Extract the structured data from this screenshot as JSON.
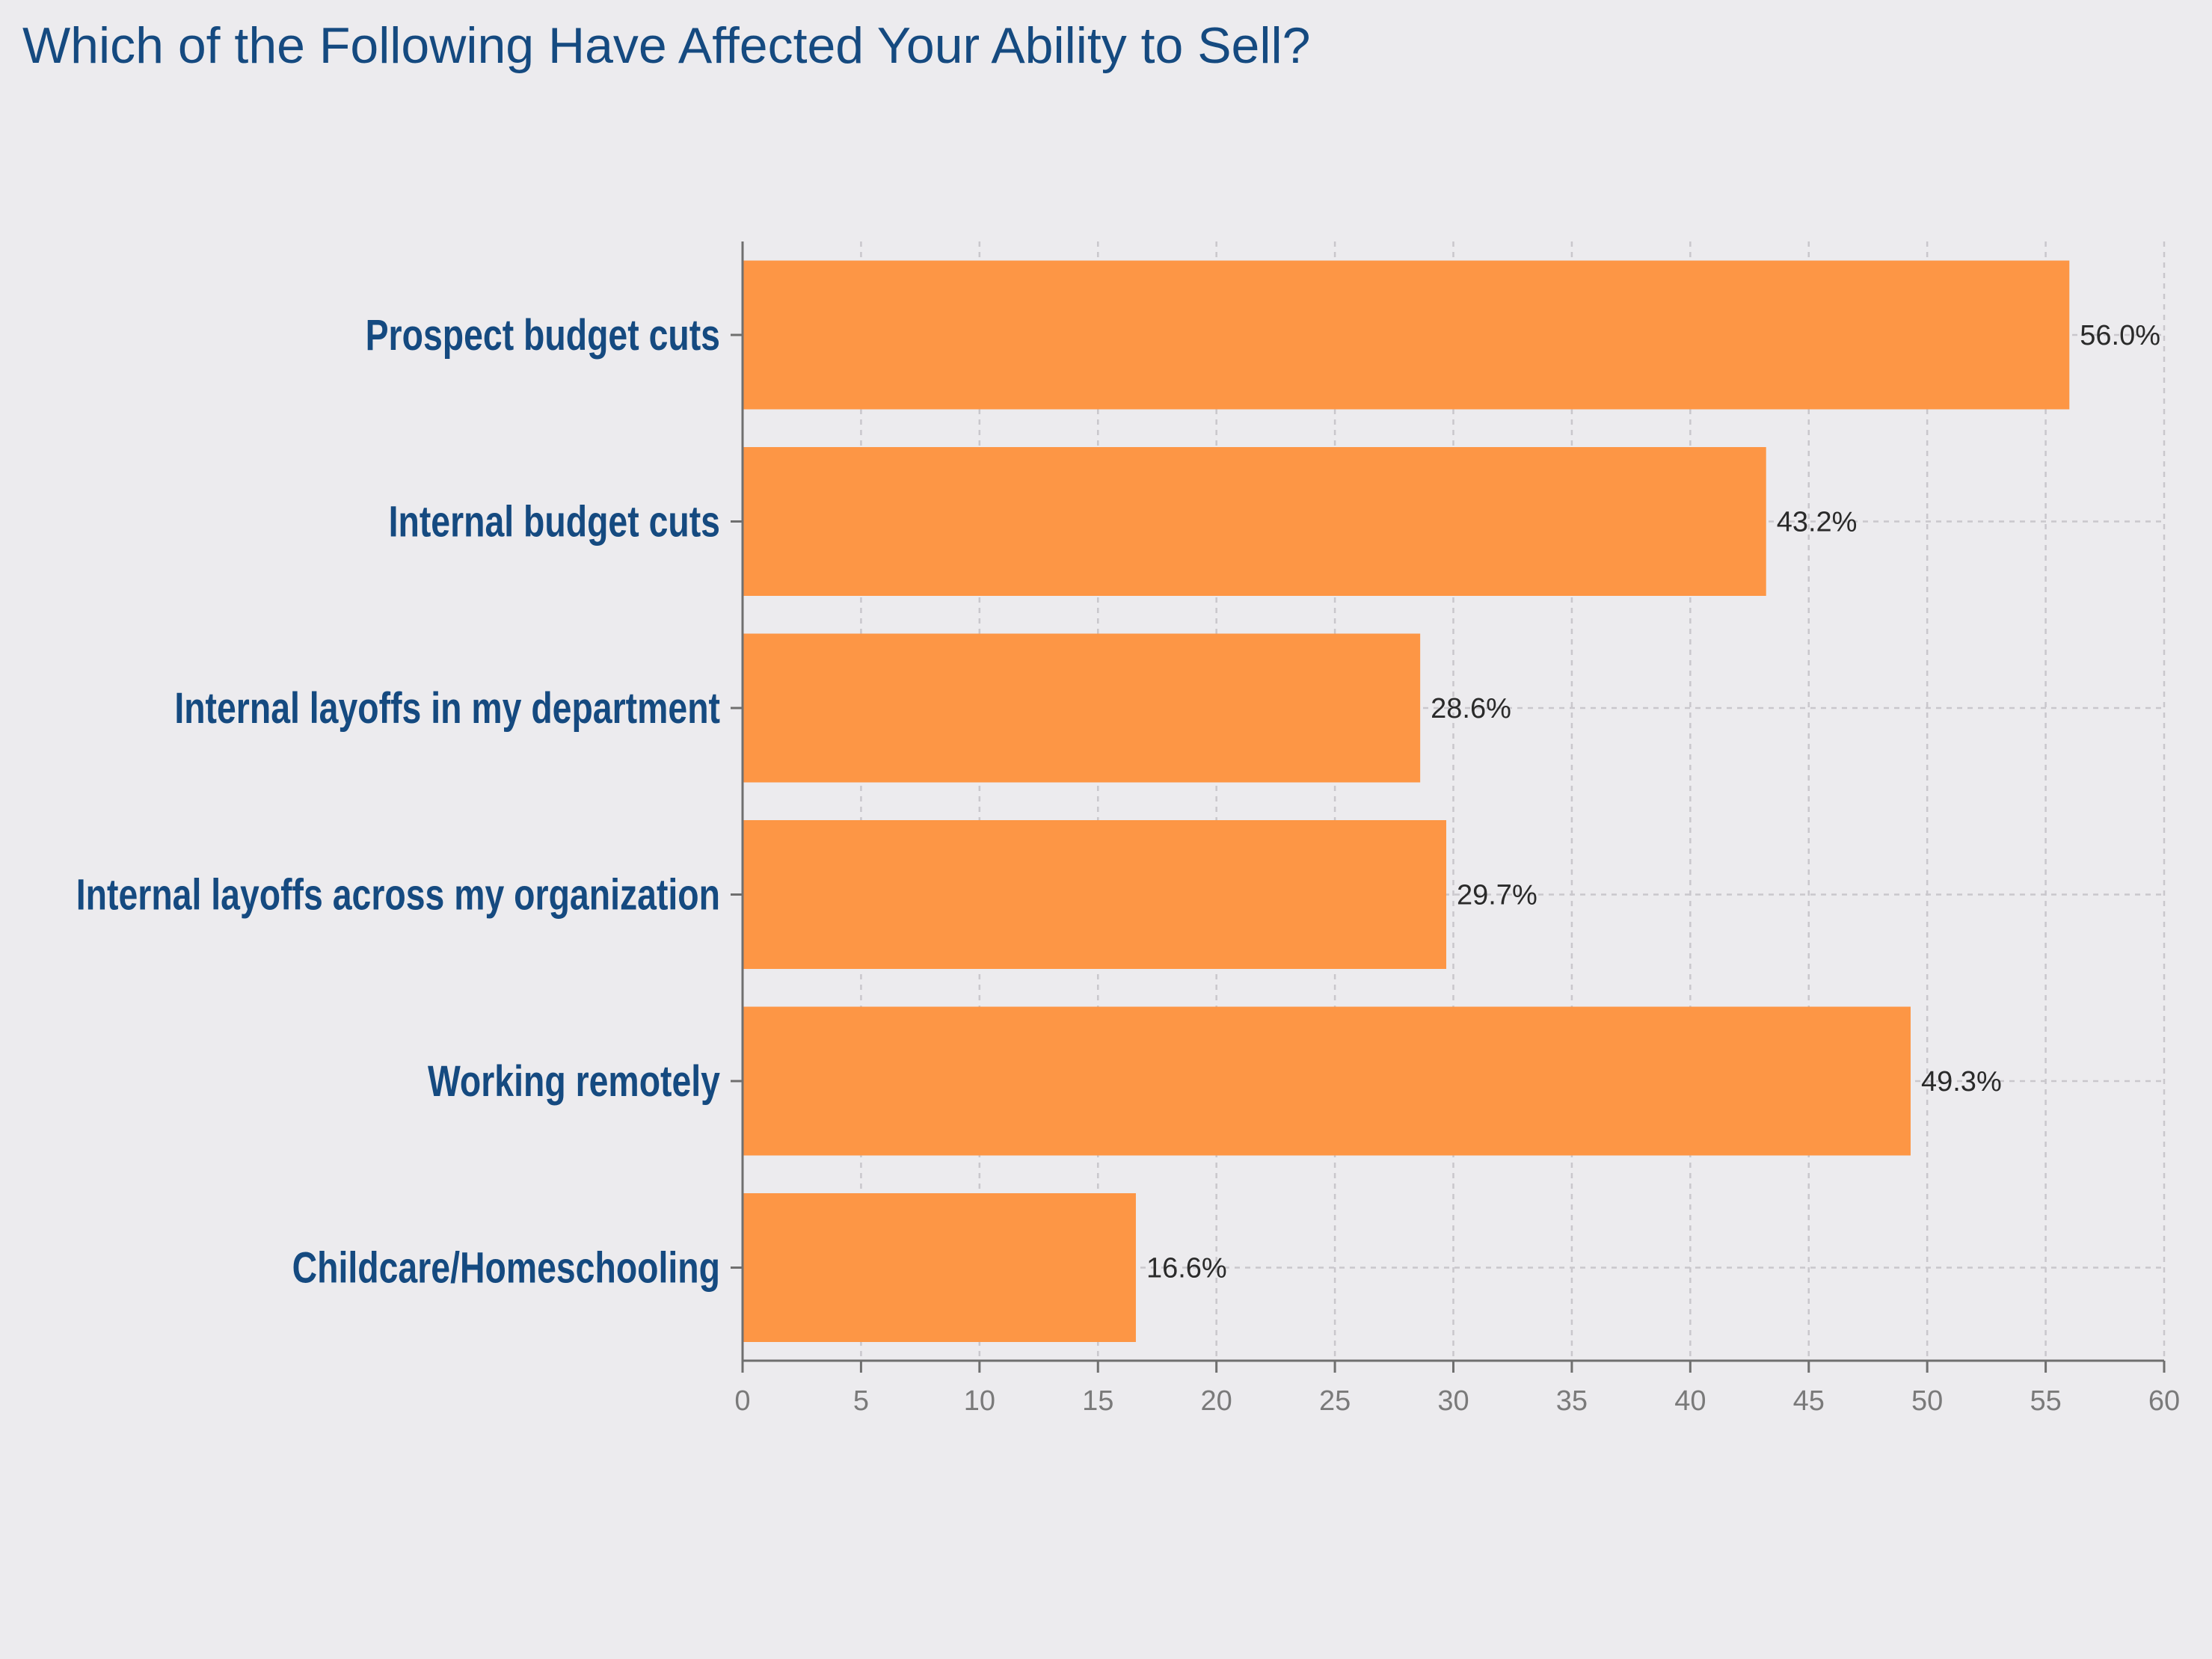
{
  "chart_data": {
    "type": "bar",
    "orientation": "horizontal",
    "title": "Which of the Following Have Affected Your Ability to Sell?",
    "categories": [
      "Prospect budget cuts",
      "Internal budget cuts",
      "Internal layoffs in my department",
      "Internal layoffs across my organization",
      "Working remotely",
      "Childcare/Homeschooling"
    ],
    "values": [
      56.0,
      43.2,
      28.6,
      29.7,
      49.3,
      16.6
    ],
    "value_labels": [
      "56.0%",
      "43.2%",
      "28.6%",
      "29.7%",
      "49.3%",
      "16.6%"
    ],
    "x_ticks": [
      "0",
      "5",
      "10",
      "15",
      "20",
      "25",
      "30",
      "35",
      "40",
      "45",
      "50",
      "55",
      "60"
    ],
    "xlim": [
      0,
      60
    ],
    "xlabel": "",
    "ylabel": "",
    "grid": true,
    "legend": "none",
    "colors": {
      "bar": "#fd9645",
      "title": "#154a80",
      "category_text": "#154a80",
      "background": "#ecebee"
    }
  }
}
